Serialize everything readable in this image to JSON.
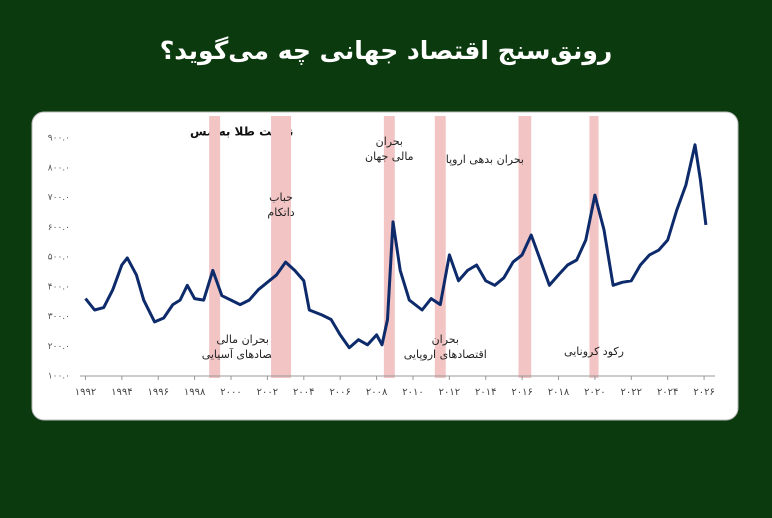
{
  "chart_data": {
    "type": "line",
    "title": "رونق‌سنج اقتصاد جهانی چه می‌گوید؟",
    "series_label": "نسبت طلا به مس",
    "x": [
      1992.0,
      1992.5,
      1993.0,
      1993.5,
      1994.0,
      1994.3,
      1994.8,
      1995.2,
      1995.8,
      1996.3,
      1996.8,
      1997.2,
      1997.6,
      1998.0,
      1998.5,
      1999.0,
      1999.5,
      2000.0,
      2000.5,
      2001.0,
      2001.5,
      2002.0,
      2002.5,
      2003.0,
      2003.5,
      2004.0,
      2004.3,
      2005.0,
      2005.5,
      2006.0,
      2006.5,
      2007.0,
      2007.5,
      2008.0,
      2008.3,
      2008.6,
      2008.9,
      2009.3,
      2009.8,
      2010.5,
      2011.0,
      2011.5,
      2012.0,
      2012.5,
      2013.0,
      2013.5,
      2014.0,
      2014.5,
      2015.0,
      2015.5,
      2016.0,
      2016.5,
      2017.0,
      2017.5,
      2018.0,
      2018.5,
      2019.0,
      2019.5,
      2020.0,
      2020.5,
      2021.0,
      2021.5,
      2022.0,
      2022.5,
      2023.0,
      2023.5,
      2024.0,
      2024.5,
      2025.0,
      2025.5,
      2025.8,
      2026.1
    ],
    "series": [
      {
        "name": "نسبت طلا به مس",
        "color": "#0d2a6b",
        "values": [
          360,
          322,
          330,
          390,
          473,
          497,
          440,
          355,
          282,
          295,
          340,
          355,
          405,
          360,
          355,
          455,
          370,
          355,
          340,
          355,
          390,
          415,
          440,
          483,
          455,
          420,
          322,
          305,
          290,
          238,
          195,
          222,
          205,
          238,
          205,
          290,
          618,
          455,
          355,
          322,
          360,
          340,
          507,
          420,
          455,
          473,
          420,
          405,
          430,
          483,
          507,
          574,
          490,
          405,
          440,
          473,
          490,
          557,
          708,
          591,
          405,
          415,
          420,
          473,
          507,
          523,
          557,
          658,
          742,
          877,
          759,
          608
        ]
      }
    ],
    "xlim": [
      1991.7,
      2026.6
    ],
    "ylim": [
      100,
      900
    ],
    "xticks": [
      {
        "value": 1992,
        "label": "۱۹۹۲"
      },
      {
        "value": 1994,
        "label": "۱۹۹۴"
      },
      {
        "value": 1996,
        "label": "۱۹۹۶"
      },
      {
        "value": 1998,
        "label": "۱۹۹۸"
      },
      {
        "value": 2000,
        "label": "۲۰۰۰"
      },
      {
        "value": 2002,
        "label": "۲۰۰۲"
      },
      {
        "value": 2004,
        "label": "۲۰۰۴"
      },
      {
        "value": 2006,
        "label": "۲۰۰۶"
      },
      {
        "value": 2008,
        "label": "۲۰۰۸"
      },
      {
        "value": 2010,
        "label": "۲۰۱۰"
      },
      {
        "value": 2012,
        "label": "۲۰۱۲"
      },
      {
        "value": 2014,
        "label": "۲۰۱۴"
      },
      {
        "value": 2016,
        "label": "۲۰۱۶"
      },
      {
        "value": 2018,
        "label": "۲۰۱۸"
      },
      {
        "value": 2020,
        "label": "۲۰۲۰"
      },
      {
        "value": 2022,
        "label": "۲۰۲۲"
      },
      {
        "value": 2024,
        "label": "۲۰۲۴"
      },
      {
        "value": 2026,
        "label": "۲۰۲۶"
      }
    ],
    "yticks": [
      {
        "value": 100,
        "label": "۱۰۰.۰"
      },
      {
        "value": 200,
        "label": "۲۰۰.۰"
      },
      {
        "value": 300,
        "label": "۳۰۰.۰"
      },
      {
        "value": 400,
        "label": "۴۰۰.۰"
      },
      {
        "value": 500,
        "label": "۵۰۰.۰"
      },
      {
        "value": 600,
        "label": "۶۰۰.۰"
      },
      {
        "value": 700,
        "label": "۷۰۰.۰"
      },
      {
        "value": 800,
        "label": "۸۰۰.۰"
      },
      {
        "value": 900,
        "label": "۹۰۰.۰"
      }
    ],
    "grid": false,
    "band_color": "#f2c4c4",
    "bands": [
      {
        "start": 1998.8,
        "end": 1999.4,
        "label": [
          "بحران مالی",
          "اقتصادهای آسیایی"
        ]
      },
      {
        "start": 2002.2,
        "end": 2003.3,
        "label": [
          "حباب",
          "داتکام"
        ]
      },
      {
        "start": 2008.4,
        "end": 2009.0,
        "label": [
          "بحران",
          "مالی جهان"
        ]
      },
      {
        "start": 2011.2,
        "end": 2011.8,
        "label": [
          "بحران",
          "اقتصادهای اروپایی"
        ]
      },
      {
        "start": 2015.8,
        "end": 2016.5,
        "label": [
          "بحران بدهی اروپا"
        ]
      },
      {
        "start": 2019.7,
        "end": 2020.2,
        "label": [
          "رکود کرونایی"
        ]
      }
    ]
  }
}
